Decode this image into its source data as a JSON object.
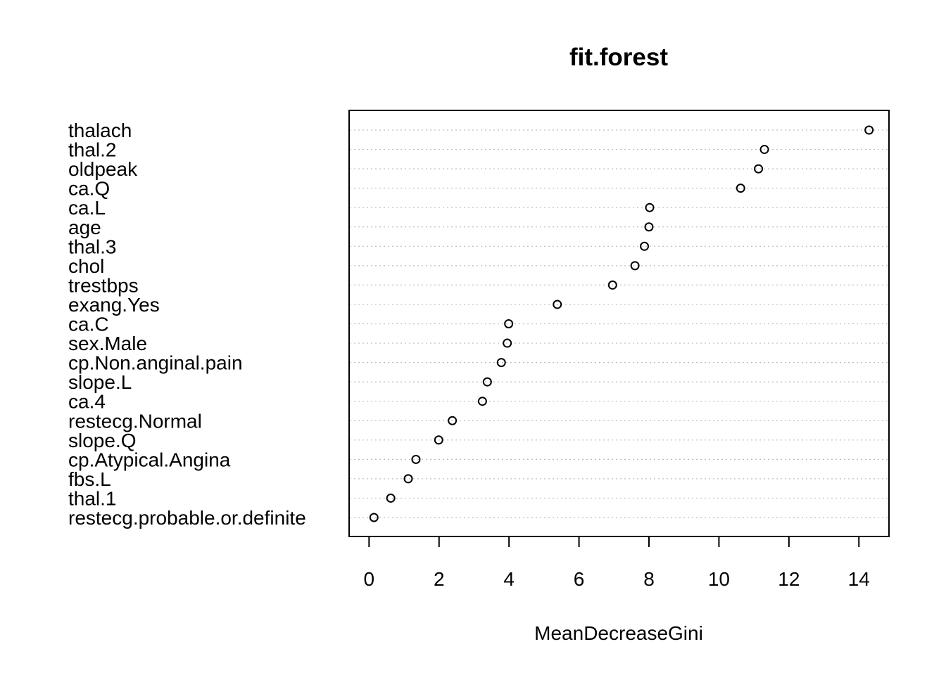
{
  "chart_data": {
    "type": "scatter",
    "subtype": "dotchart",
    "title": "fit.forest",
    "xlabel": "MeanDecreaseGini",
    "ylabel": "",
    "xlim": [
      -0.57,
      14.86
    ],
    "xticks": [
      0,
      2,
      4,
      6,
      8,
      10,
      12,
      14
    ],
    "grid": "dotted horizontal guide per row",
    "legend": "none",
    "point_style": "open circle",
    "categories": [
      "thalach",
      "thal.2",
      "oldpeak",
      "ca.Q",
      "ca.L",
      "age",
      "thal.3",
      "chol",
      "trestbps",
      "exang.Yes",
      "ca.C",
      "sex.Male",
      "cp.Non.anginal.pain",
      "slope.L",
      "ca.4",
      "restecg.Normal",
      "slope.Q",
      "cp.Atypical.Angina",
      "fbs.L",
      "thal.1",
      "restecg.probable.or.definite"
    ],
    "values": [
      14.29,
      11.3,
      11.13,
      10.62,
      8.02,
      8.0,
      7.87,
      7.6,
      6.96,
      5.38,
      3.99,
      3.95,
      3.78,
      3.38,
      3.24,
      2.38,
      1.99,
      1.34,
      1.12,
      0.62,
      0.14
    ]
  }
}
